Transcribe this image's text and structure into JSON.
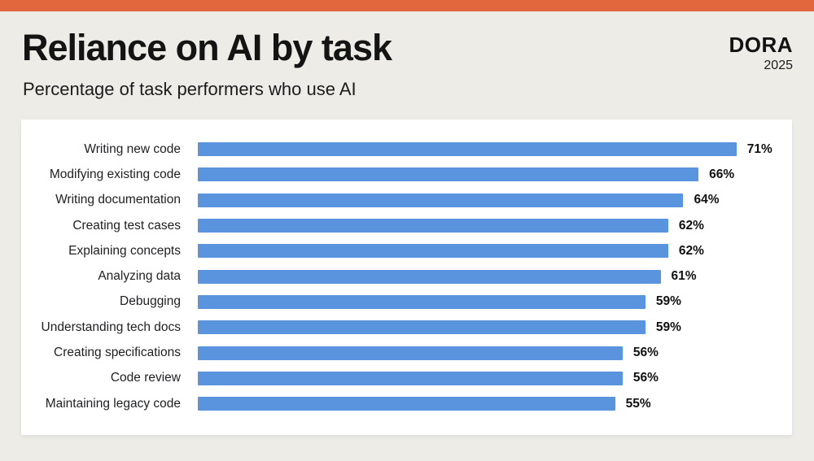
{
  "page": {
    "background_color": "#EDECE7",
    "accent_bar_color": "#E2673C",
    "panel_color": "#FFFFFF"
  },
  "header": {
    "title": "Reliance on AI by task",
    "subtitle": "Percentage of task performers who use AI",
    "brand": "DORA",
    "year": "2025"
  },
  "chart_data": {
    "type": "bar",
    "orientation": "horizontal",
    "title": "Reliance on AI by task",
    "subtitle": "Percentage of task performers who use AI",
    "categories": [
      "Writing new code",
      "Modifying existing code",
      "Writing documentation",
      "Creating test cases",
      "Explaining concepts",
      "Analyzing data",
      "Debugging",
      "Understanding tech docs",
      "Creating specifications",
      "Code review",
      "Maintaining legacy code"
    ],
    "values": [
      71,
      66,
      64,
      62,
      62,
      61,
      59,
      59,
      56,
      56,
      55
    ],
    "value_suffix": "%",
    "bar_color": "#5A93DE",
    "xlim": [
      0,
      75
    ],
    "grid": false,
    "legend": false
  }
}
